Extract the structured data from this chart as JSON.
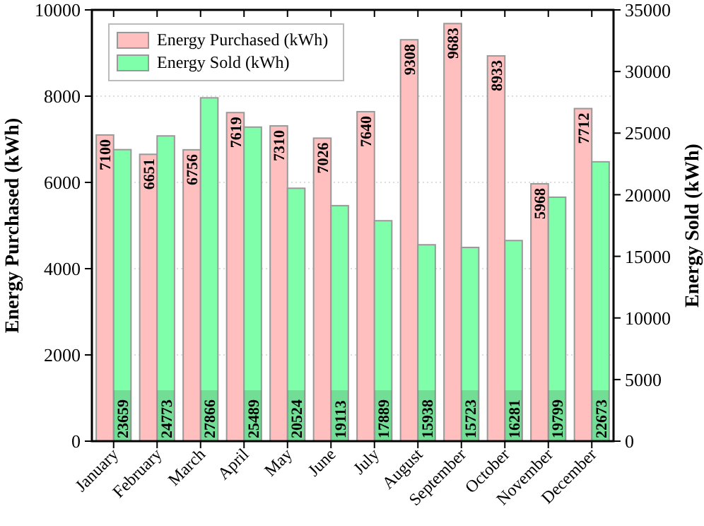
{
  "chart_data": {
    "type": "bar",
    "xlabel": null,
    "ylabel": "Energy Purchased (kWh)",
    "y2label": "Energy Sold (kWh)",
    "categories": [
      "January",
      "February",
      "March",
      "April",
      "May",
      "June",
      "July",
      "August",
      "September",
      "October",
      "November",
      "December"
    ],
    "series": [
      {
        "name": "Energy Purchased (kWh)",
        "color": "#ffbfbf",
        "values": [
          7100,
          6651,
          6756,
          7619,
          7310,
          7026,
          7640,
          9308,
          9683,
          8933,
          5968,
          7712
        ]
      },
      {
        "name": "Energy Sold (kWh)",
        "color": "#80ffaa",
        "axis": "y2",
        "values": [
          23659,
          24773,
          27866,
          25489,
          20524,
          19113,
          17889,
          15938,
          15723,
          16281,
          19799,
          22673
        ]
      }
    ],
    "ylim": [
      0,
      10000
    ],
    "yticks": [
      0,
      2000,
      4000,
      6000,
      8000,
      10000
    ],
    "y2lim": [
      0,
      35000
    ],
    "y2ticks": [
      0,
      5000,
      10000,
      15000,
      20000,
      25000,
      30000,
      35000
    ],
    "grid": "y",
    "legend": "top left",
    "data_labels": true
  }
}
